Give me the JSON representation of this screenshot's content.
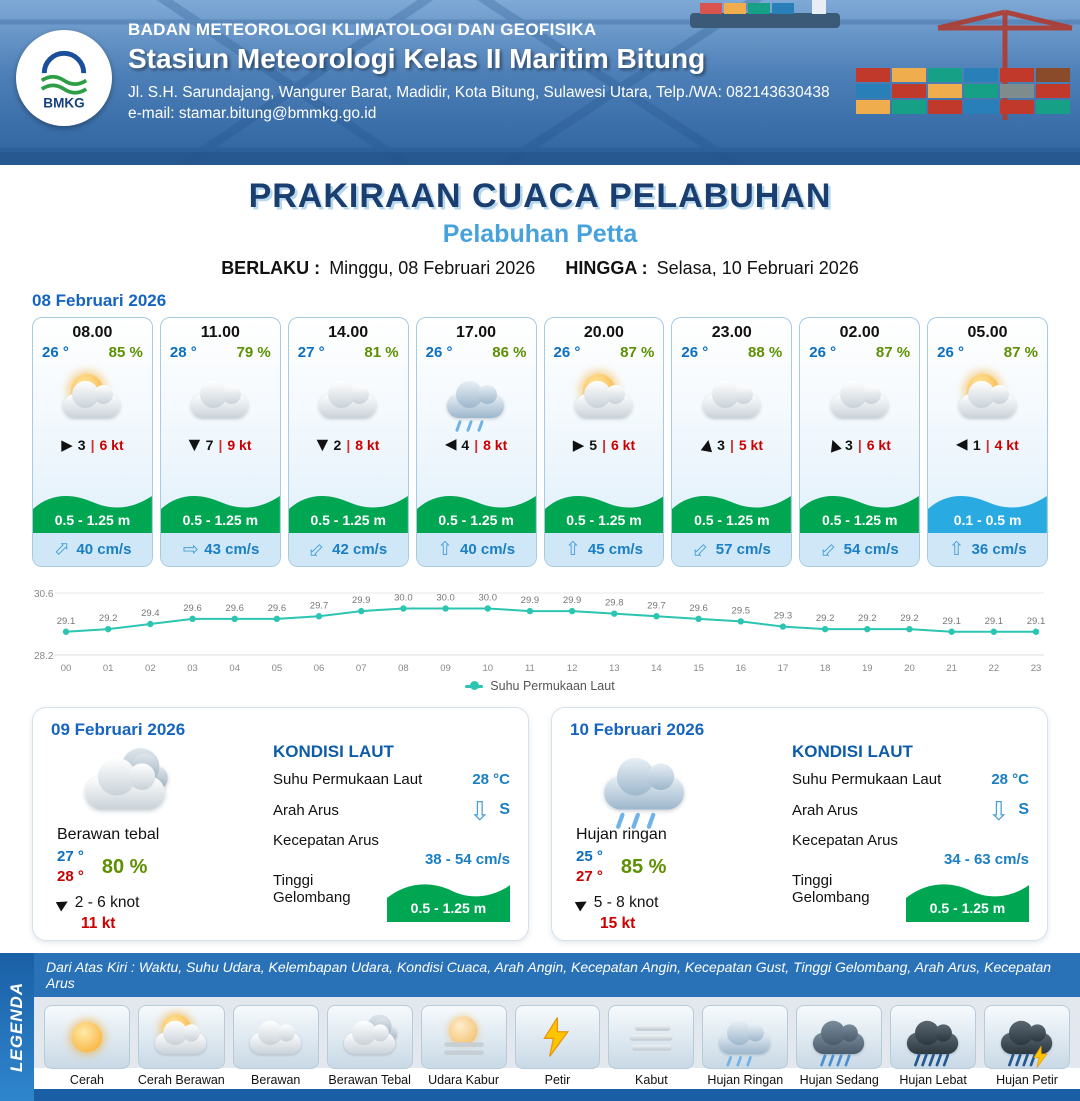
{
  "header": {
    "logo_label": "BMKG",
    "org": "BADAN METEOROLOGI KLIMATOLOGI DAN GEOFISIKA",
    "station": "Stasiun Meteorologi Kelas II Maritim Bitung",
    "address": "Jl. S.H. Sarundajang, Wangurer Barat, Madidir, Kota Bitung, Sulawesi Utara, Telp./WA: 082143630438",
    "email": "e-mail: stamar.bitung@bmmkg.go.id"
  },
  "title": {
    "main": "PRAKIRAAN CUACA PELABUHAN",
    "sub": "Pelabuhan Petta",
    "berlaku_label": "BERLAKU :",
    "berlaku_value": "Minggu, 08 Februari 2026",
    "hingga_label": "HINGGA :",
    "hingga_value": "Selasa, 10 Februari 2026"
  },
  "icons": {
    "wind_arrow": "▶",
    "current_arrow": "⇧"
  },
  "hourly_section": {
    "date": "08 Februari 2026",
    "cards": [
      {
        "time": "08.00",
        "temp": "26 °",
        "rh": "85 %",
        "icon": "cerah-berawan",
        "wind_rot": 0,
        "wind_val": "3",
        "wind_kt": "6 kt",
        "wave": "0.5 - 1.25 m",
        "wave_style": "green",
        "cur_rot": 45,
        "cur_val": "40 cm/s"
      },
      {
        "time": "11.00",
        "temp": "28 °",
        "rh": "79 %",
        "icon": "berawan",
        "wind_rot": 90,
        "wind_val": "7",
        "wind_kt": "9 kt",
        "wave": "0.5 - 1.25 m",
        "wave_style": "green",
        "cur_rot": 90,
        "cur_val": "43 cm/s"
      },
      {
        "time": "14.00",
        "temp": "27 °",
        "rh": "81 %",
        "icon": "berawan",
        "wind_rot": 90,
        "wind_val": "2",
        "wind_kt": "8 kt",
        "wave": "0.5 - 1.25 m",
        "wave_style": "green",
        "cur_rot": -135,
        "cur_val": "42 cm/s"
      },
      {
        "time": "17.00",
        "temp": "26 °",
        "rh": "86 %",
        "icon": "hujan-ringan",
        "wind_rot": 180,
        "wind_val": "4",
        "wind_kt": "8 kt",
        "wave": "0.5 - 1.25 m",
        "wave_style": "green",
        "cur_rot": 0,
        "cur_val": "40 cm/s"
      },
      {
        "time": "20.00",
        "temp": "26 °",
        "rh": "87 %",
        "icon": "cerah-berawan",
        "wind_rot": 0,
        "wind_val": "5",
        "wind_kt": "6 kt",
        "wave": "0.5 - 1.25 m",
        "wave_style": "green",
        "cur_rot": 0,
        "cur_val": "45 cm/s"
      },
      {
        "time": "23.00",
        "temp": "26 °",
        "rh": "88 %",
        "icon": "berawan",
        "wind_rot": -80,
        "wind_val": "3",
        "wind_kt": "5 kt",
        "wave": "0.5 - 1.25 m",
        "wave_style": "green",
        "cur_rot": -135,
        "cur_val": "57 cm/s"
      },
      {
        "time": "02.00",
        "temp": "26 °",
        "rh": "87 %",
        "icon": "berawan",
        "wind_rot": -110,
        "wind_val": "3",
        "wind_kt": "6 kt",
        "wave": "0.5 - 1.25 m",
        "wave_style": "green",
        "cur_rot": -135,
        "cur_val": "54 cm/s"
      },
      {
        "time": "05.00",
        "temp": "26 °",
        "rh": "87 %",
        "icon": "cerah-berawan",
        "wind_rot": 180,
        "wind_val": "1",
        "wind_kt": "4 kt",
        "wave": "0.1 - 0.5 m",
        "wave_style": "blue",
        "cur_rot": 0,
        "cur_val": "36 cm/s"
      }
    ]
  },
  "chart_data": {
    "type": "line",
    "x": [
      "00",
      "01",
      "02",
      "03",
      "04",
      "05",
      "06",
      "07",
      "08",
      "09",
      "10",
      "11",
      "12",
      "13",
      "14",
      "15",
      "16",
      "17",
      "18",
      "19",
      "20",
      "21",
      "22",
      "23"
    ],
    "series": [
      {
        "name": "Suhu Permukaan Laut",
        "values": [
          29.1,
          29.2,
          29.4,
          29.6,
          29.6,
          29.6,
          29.7,
          29.9,
          30.0,
          30.0,
          30.0,
          29.9,
          29.9,
          29.8,
          29.7,
          29.6,
          29.5,
          29.3,
          29.2,
          29.2,
          29.2,
          29.1,
          29.1,
          29.1
        ]
      }
    ],
    "ylim": [
      28.2,
      30.6
    ],
    "line_color": "#2cc5b2",
    "legend_position": "bottom-center",
    "grid": false,
    "title": ""
  },
  "daily": [
    {
      "date": "09 Februari 2026",
      "icon": "berawan-tebal",
      "condition": "Berawan tebal",
      "temp_min": "27 °",
      "temp_max": "28 °",
      "rh": "80 %",
      "wind_rot": -30,
      "wind_range": "2  - 6 knot",
      "wind_kt": "11 kt",
      "sea_title": "KONDISI LAUT",
      "sst_label": "Suhu Permukaan Laut",
      "sst": "28 °C",
      "arus_label": "Arah Arus",
      "arus_dir": "S",
      "arus_rot": 180,
      "kec_label": "Kecepatan Arus",
      "kec": "38 - 54 cm/s",
      "gel_label": "Tinggi Gelombang",
      "gel": "0.5 - 1.25 m"
    },
    {
      "date": "10 Februari 2026",
      "icon": "hujan-ringan",
      "condition": "Hujan ringan",
      "temp_min": "25 °",
      "temp_max": "27 °",
      "rh": "85 %",
      "wind_rot": -30,
      "wind_range": "5  - 8 knot",
      "wind_kt": "15 kt",
      "sea_title": "KONDISI LAUT",
      "sst_label": "Suhu Permukaan Laut",
      "sst": "28 °C",
      "arus_label": "Arah Arus",
      "arus_dir": "S",
      "arus_rot": 180,
      "kec_label": "Kecepatan Arus",
      "kec": "34 - 63 cm/s",
      "gel_label": "Tinggi Gelombang",
      "gel": "0.5 - 1.25 m"
    }
  ],
  "legend": {
    "title": "LEGENDA",
    "note": "Dari Atas Kiri : Waktu, Suhu Udara, Kelembapan Udara, Kondisi Cuaca, Arah Angin, Kecepatan Angin, Kecepatan Gust, Tinggi Gelombang, Arah Arus, Kecepatan Arus",
    "items": [
      {
        "label": "Cerah",
        "icon": "cerah"
      },
      {
        "label": "Cerah Berawan",
        "icon": "cerah-berawan"
      },
      {
        "label": "Berawan",
        "icon": "berawan"
      },
      {
        "label": "Berawan Tebal",
        "icon": "berawan-tebal"
      },
      {
        "label": "Udara Kabur",
        "icon": "udara-kabur"
      },
      {
        "label": "Petir",
        "icon": "petir"
      },
      {
        "label": "Kabut",
        "icon": "kabut"
      },
      {
        "label": "Hujan Ringan",
        "icon": "hujan-ringan"
      },
      {
        "label": "Hujan Sedang",
        "icon": "hujan-sedang"
      },
      {
        "label": "Hujan Lebat",
        "icon": "hujan-lebat"
      },
      {
        "label": "Hujan Petir",
        "icon": "hujan-petir"
      }
    ]
  },
  "colors": {
    "temp_blue": "#0a6fc2",
    "humidity_green": "#5d8f00",
    "wind_red": "#cc0000",
    "wave_green": "#00a651",
    "wave_blue": "#29abe2",
    "current_blue": "#1a7fc4",
    "chart_teal": "#2cc5b2",
    "heading_navy": "#1b3e70",
    "accent_blue": "#1565c0",
    "legend_bar_blue": "#2a72b8"
  }
}
